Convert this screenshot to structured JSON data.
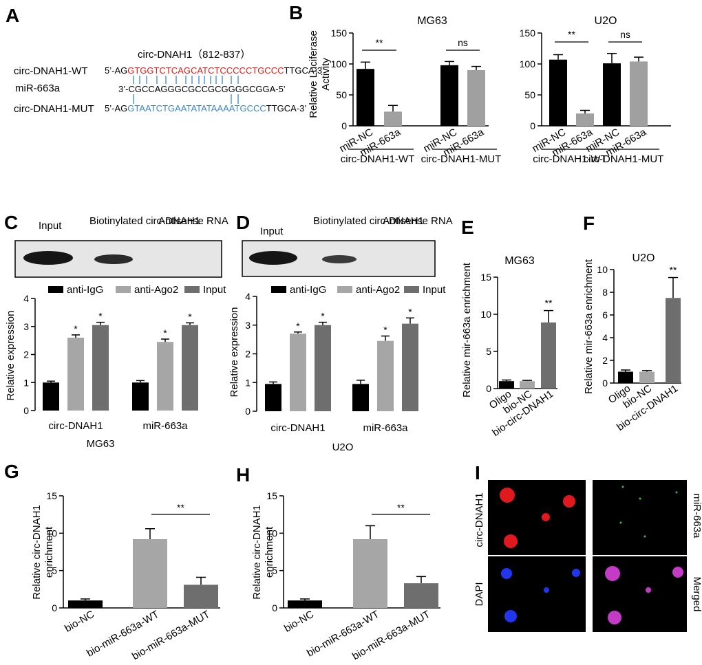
{
  "panels": {
    "A": {
      "letter": "A",
      "title": "circ-DNAH1（812-837）",
      "rows": [
        {
          "label": "circ-DNAH1-WT",
          "prefix": "5’-AG",
          "core": "GTGGTCTCAGCATCTCCCCCTGCCC",
          "suffix": "TTGCA-3’"
        },
        {
          "label": "miR-663a",
          "prefix": "",
          "core": "3’-CGCCAGGGCGCCGCGGGGCGGA-5’",
          "suffix": ""
        },
        {
          "label": "circ-DNAH1-MUT",
          "prefix": "5’-AG",
          "core": "GTAATCTGAATATATAAAATGCCC",
          "suffix": "TTGCA-3’"
        }
      ]
    },
    "B": {
      "letter": "B",
      "ylabel": "Relative Luciferase Activity"
    },
    "C": {
      "letter": "C",
      "blot_labels": [
        "Input",
        "Biotinylated circ-DNAH1",
        "Antisense RNA"
      ]
    },
    "D": {
      "letter": "D",
      "blot_labels": [
        "Input",
        "Biotinylated circ-DNAH1",
        "Antisense RNA"
      ]
    },
    "E": {
      "letter": "E"
    },
    "F": {
      "letter": "F"
    },
    "G": {
      "letter": "G"
    },
    "H": {
      "letter": "H"
    },
    "I": {
      "letter": "I",
      "labels": {
        "top_left": "circ-DNAH1",
        "bottom_left": "DAPI",
        "top_right": "miR-663a",
        "bottom_right": "Merged"
      }
    }
  },
  "chart_data": [
    {
      "id": "B1",
      "type": "bar",
      "title": "MG63",
      "ylabel": "Relative Luciferase Activity",
      "ylim": [
        0,
        150
      ],
      "yticks": [
        "0",
        "50",
        "100",
        "150"
      ],
      "categories": [
        "miR-NC",
        "miR-663a",
        "miR-NC",
        "miR-663a"
      ],
      "values": [
        92,
        23,
        98,
        90
      ],
      "errors": [
        11,
        10,
        6,
        6
      ],
      "colors": [
        "#000000",
        "#a0a0a0",
        "#000000",
        "#a0a0a0"
      ],
      "groups": [
        "circ-DNAH1-WT",
        "circ-DNAH1-MUT"
      ],
      "significance": [
        "**",
        "ns"
      ]
    },
    {
      "id": "B2",
      "type": "bar",
      "title": "U2O",
      "ylim": [
        0,
        150
      ],
      "yticks": [
        "0",
        "50",
        "100",
        "150"
      ],
      "categories": [
        "miR-NC",
        "miR-663a",
        "miR-NC",
        "miR-663a"
      ],
      "values": [
        107,
        20,
        101,
        104
      ],
      "errors": [
        8,
        5,
        16,
        7
      ],
      "colors": [
        "#000000",
        "#a0a0a0",
        "#000000",
        "#a0a0a0"
      ],
      "groups": [
        "circ-DNAH1-WT",
        "circ-DNAH1-MUT"
      ],
      "significance": [
        "**",
        "ns"
      ]
    },
    {
      "id": "C",
      "type": "bar",
      "xlabel": "MG63",
      "ylabel": "Relative expression",
      "ylim": [
        0,
        4
      ],
      "yticks": [
        "0",
        "1",
        "2",
        "3",
        "4"
      ],
      "categories": [
        "circ-DNAH1",
        "miR-663a"
      ],
      "series": [
        {
          "name": "anti-IgG",
          "color": "#000000",
          "values": [
            1.0,
            1.0
          ],
          "errors": [
            0.05,
            0.07
          ],
          "stars": [
            "",
            ""
          ]
        },
        {
          "name": "anti-Ago2",
          "color": "#a6a6a6",
          "values": [
            2.6,
            2.45
          ],
          "errors": [
            0.1,
            0.1
          ],
          "stars": [
            "*",
            "*"
          ]
        },
        {
          "name": "Input",
          "color": "#6e6e6e",
          "values": [
            3.05,
            3.05
          ],
          "errors": [
            0.1,
            0.08
          ],
          "stars": [
            "*",
            "*"
          ]
        }
      ]
    },
    {
      "id": "D",
      "type": "bar",
      "xlabel": "U2O",
      "ylabel": "Relative expression",
      "ylim": [
        0,
        4
      ],
      "yticks": [
        "0",
        "1",
        "2",
        "3",
        "4"
      ],
      "categories": [
        "circ-DNAH1",
        "miR-663a"
      ],
      "series": [
        {
          "name": "anti-IgG",
          "color": "#000000",
          "values": [
            0.95,
            0.95
          ],
          "errors": [
            0.07,
            0.13
          ],
          "stars": [
            "",
            ""
          ]
        },
        {
          "name": "anti-Ago2",
          "color": "#a6a6a6",
          "values": [
            2.7,
            2.45
          ],
          "errors": [
            0.06,
            0.17
          ],
          "stars": [
            "*",
            "*"
          ]
        },
        {
          "name": "Input",
          "color": "#6e6e6e",
          "values": [
            3.0,
            3.05
          ],
          "errors": [
            0.1,
            0.2
          ],
          "stars": [
            "*",
            "*"
          ]
        }
      ]
    },
    {
      "id": "E",
      "type": "bar",
      "title": "MG63",
      "ylabel": "Relative mir-663a enrichment",
      "ylim": [
        0,
        15
      ],
      "yticks": [
        "0",
        "5",
        "10",
        "15"
      ],
      "categories": [
        "Oligo",
        "bio-NC",
        "bio-circ-DNAH1"
      ],
      "values": [
        1.0,
        1.0,
        8.9
      ],
      "errors": [
        0.15,
        0.1,
        1.6
      ],
      "colors": [
        "#000000",
        "#a6a6a6",
        "#6e6e6e"
      ],
      "stars": [
        "",
        "",
        "**"
      ]
    },
    {
      "id": "F",
      "type": "bar",
      "title": "U2O",
      "ylabel": "Relative mir-663a enrichment",
      "ylim": [
        0,
        10
      ],
      "yticks": [
        "0",
        "2",
        "4",
        "6",
        "8",
        "10"
      ],
      "categories": [
        "Oligo",
        "bio-NC",
        "bio-circ-DNAH1"
      ],
      "values": [
        1.0,
        1.0,
        7.5
      ],
      "errors": [
        0.15,
        0.1,
        1.8
      ],
      "colors": [
        "#000000",
        "#a6a6a6",
        "#6e6e6e"
      ],
      "stars": [
        "",
        "",
        "**"
      ]
    },
    {
      "id": "G",
      "type": "bar",
      "ylabel": "Relative circ-DNAH1 enrichment",
      "ylim": [
        0,
        15
      ],
      "yticks": [
        "0",
        "5",
        "10",
        "15"
      ],
      "categories": [
        "bio-NC",
        "bio-miR-663a-WT",
        "bio-miR-663a-MUT"
      ],
      "values": [
        1.0,
        9.2,
        3.1
      ],
      "errors": [
        0.2,
        1.4,
        1.0
      ],
      "colors": [
        "#000000",
        "#a6a6a6",
        "#6e6e6e"
      ],
      "significance": [
        "**"
      ]
    },
    {
      "id": "H",
      "type": "bar",
      "ylabel": "Relative circ-DNAH1 enrichment",
      "ylim": [
        0,
        15
      ],
      "yticks": [
        "0",
        "5",
        "10",
        "15"
      ],
      "categories": [
        "bio-NC",
        "bio-miR-663a-WT",
        "bio-miR-663a-MUT"
      ],
      "values": [
        1.0,
        9.2,
        3.3
      ],
      "errors": [
        0.2,
        1.8,
        0.9
      ],
      "colors": [
        "#000000",
        "#a6a6a6",
        "#6e6e6e"
      ],
      "significance": [
        "**"
      ]
    }
  ]
}
